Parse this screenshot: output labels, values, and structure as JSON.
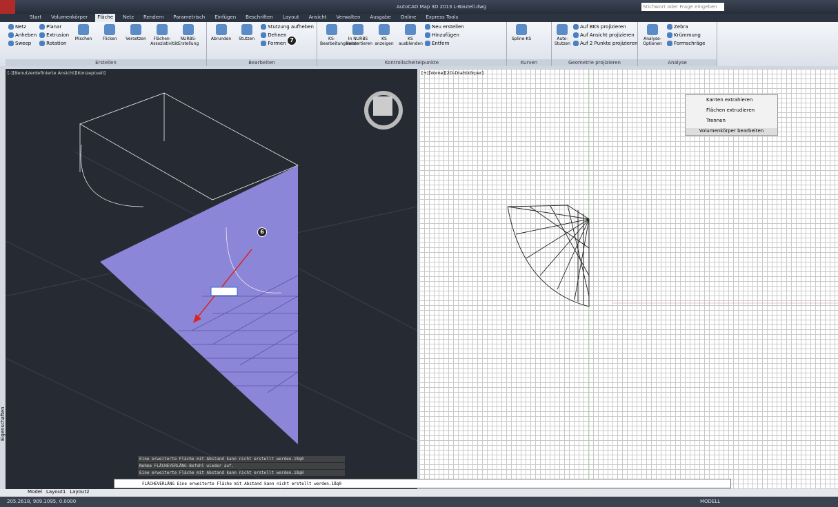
{
  "title": "AutoCAD Map 3D 2013   L-Bauteil.dwg",
  "search": "Stichwort oder Frage eingeben",
  "tabs": [
    "Start",
    "Volumenkörper",
    "Fläche",
    "Netz",
    "Rendern",
    "Parametrisch",
    "Einfügen",
    "Beschriften",
    "Layout",
    "Ansicht",
    "Verwalten",
    "Ausgabe",
    "Online",
    "Express Tools"
  ],
  "panels": [
    {
      "label": "Erstellen",
      "small": [
        "Netz",
        "Anheben",
        "Sweep",
        "Planar",
        "Extrusion",
        "Rotation"
      ],
      "large": [
        "Mischen",
        "Flicken",
        "Versetzen",
        "Flächen-Assoziativität",
        "NURBS-Erstellung"
      ]
    },
    {
      "label": "Bearbeiten",
      "large": [
        "Abrunden",
        "Stutzen"
      ],
      "small": [
        "Stutzung aufheben",
        "Dehnen",
        "Formen"
      ]
    },
    {
      "label": "Kontrollscheitelpunkte",
      "large": [
        "KS-Bearbeitungsleiste",
        "In NURBS konvertieren",
        "KS anzeigen",
        "KS ausblenden"
      ],
      "small": [
        "Neu erstellen",
        "Hinzufügen",
        "Entfern"
      ]
    },
    {
      "label": "Kurven",
      "large": [
        "Spline-KS"
      ],
      "small": []
    },
    {
      "label": "Geometrie projizieren",
      "large": [
        "Auto-Stutzen"
      ],
      "small": [
        "Auf BKS projizieren",
        "Auf Ansicht projizieren",
        "Auf 2 Punkte projizieren"
      ]
    },
    {
      "label": "Analyse",
      "large": [
        "Analyse-Optionen"
      ],
      "small": [
        "Zebra",
        "Krümmung",
        "Formschräge"
      ]
    }
  ],
  "viewports": {
    "left": "[-][Benutzerdefinierte Ansicht][Konzeptuell]",
    "right": "[+][Vorne][2D-Drahtkörper]"
  },
  "callouts": [
    "6",
    "7"
  ],
  "floating_panel": {
    "items": [
      "Kanten extrahieren",
      "Flächen extrudieren",
      "Trennen"
    ],
    "label": "Volumenkörper bearbeiten"
  },
  "palette": "Eigenschaften",
  "command_history": [
    "Eine erweiterte Fläche mit Abstand  kann nicht erstellt werden.1ßq0",
    "Nehme FLÄCHEVERLÄNG-Befehl wieder auf.",
    "Eine erweiterte Fläche mit Abstand  kann nicht erstellt werden.1ßq0"
  ],
  "command_prompt": "FLÄCHEVERLÄNG Eine erweiterte Fläche mit Abstand  kann nicht erstellt werden.1ßq0",
  "layout_tabs": [
    "Model",
    "Layout1",
    "Layout2"
  ],
  "status": {
    "coords": "205.2618, 909.1095, 0.0000",
    "mode": "MODELL"
  }
}
